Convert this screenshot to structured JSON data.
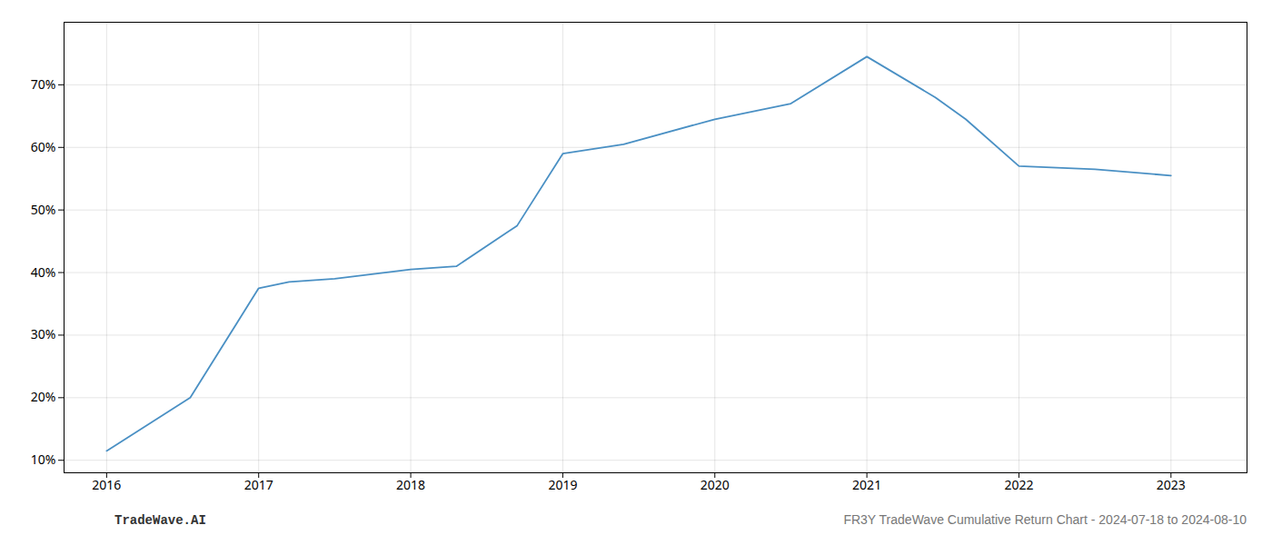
{
  "chart_data": {
    "type": "line",
    "x": [
      2016.0,
      2016.55,
      2017.0,
      2017.2,
      2017.5,
      2018.0,
      2018.3,
      2018.7,
      2019.0,
      2019.4,
      2020.0,
      2020.5,
      2021.0,
      2021.45,
      2021.65,
      2022.0,
      2022.5,
      2023.0
    ],
    "values": [
      11.5,
      20.0,
      37.5,
      38.5,
      39.0,
      40.5,
      41.0,
      47.5,
      59.0,
      60.5,
      64.5,
      67.0,
      74.5,
      68.0,
      64.5,
      57.0,
      56.5,
      55.5
    ],
    "color": "#4a90c4",
    "xlim": [
      2015.72,
      2023.5
    ],
    "ylim": [
      8,
      80
    ],
    "xticks": [
      2016,
      2017,
      2018,
      2019,
      2020,
      2021,
      2022,
      2023
    ],
    "yticks": [
      {
        "value": 10,
        "label": "10%"
      },
      {
        "value": 20,
        "label": "20%"
      },
      {
        "value": 30,
        "label": "30%"
      },
      {
        "value": 40,
        "label": "40%"
      },
      {
        "value": 50,
        "label": "50%"
      },
      {
        "value": 60,
        "label": "60%"
      },
      {
        "value": 70,
        "label": "70%"
      }
    ],
    "grid": true,
    "annotations": [
      "TradeWave.AI",
      "FR3Y TradeWave Cumulative Return Chart - 2024-07-18 to 2024-08-10"
    ]
  }
}
